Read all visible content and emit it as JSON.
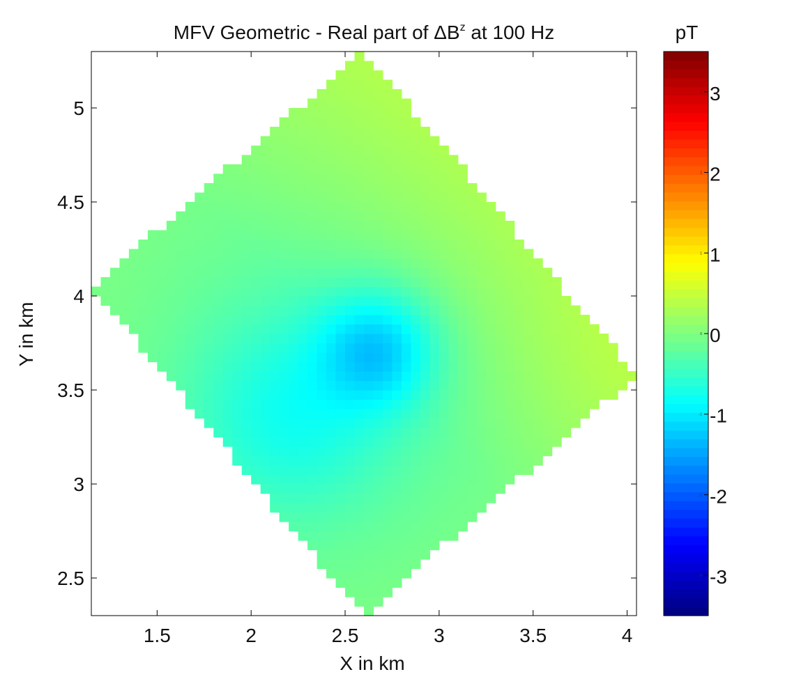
{
  "chart_data": {
    "type": "heatmap",
    "title": "MFV Geometric - Real part of ΔB",
    "title_superscript": "z",
    "title_suffix": " at 100 Hz",
    "xlabel": "X in km",
    "ylabel": "Y in km",
    "xlim": [
      1.15,
      4.05
    ],
    "ylim": [
      2.3,
      5.3
    ],
    "xticks": [
      1.5,
      2,
      2.5,
      3,
      3.5,
      4
    ],
    "xtick_labels": [
      "1.5",
      "2",
      "2.5",
      "3",
      "3.5",
      "4"
    ],
    "yticks": [
      2.5,
      3,
      3.5,
      4,
      4.5,
      5
    ],
    "ytick_labels": [
      "2.5",
      "3",
      "3.5",
      "4",
      "4.5",
      "5"
    ],
    "colormap": "jet",
    "colorbar": {
      "label": "pT",
      "range": [
        -3.5,
        3.5
      ],
      "ticks": [
        3,
        2,
        1,
        0,
        -1,
        -2,
        -3
      ],
      "tick_labels": [
        "3",
        "2",
        "1",
        "0",
        "-1",
        "-2",
        "-3"
      ]
    },
    "region": {
      "shape": "diamond",
      "vertices": [
        [
          2.6,
          5.3
        ],
        [
          4.05,
          3.58
        ],
        [
          2.6,
          2.3
        ],
        [
          1.15,
          4.05
        ]
      ]
    },
    "field": {
      "background": 0.0,
      "min_center": [
        2.68,
        3.72
      ],
      "min_value": -0.95,
      "trough_to": [
        2.2,
        3.35
      ],
      "max_corner": [
        3.9,
        3.6
      ],
      "max_value": 0.35,
      "pixel_size_km": 0.05
    },
    "grid": false,
    "box": true
  }
}
